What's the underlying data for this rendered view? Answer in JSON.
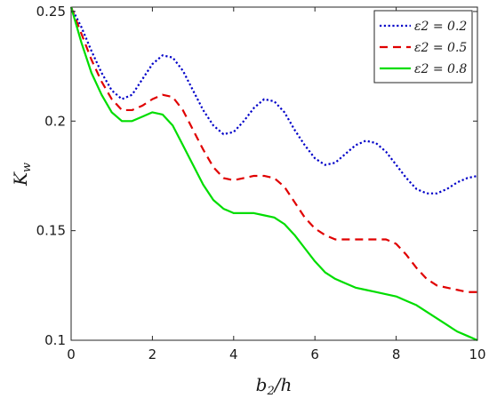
{
  "chart_data": {
    "type": "line",
    "xlabel": "b2/h",
    "ylabel": "Kw",
    "xlim": [
      0,
      10
    ],
    "ylim": [
      0.1,
      0.252
    ],
    "x_ticks": [
      "0",
      "2",
      "4",
      "6",
      "8",
      "10"
    ],
    "y_ticks": [
      "0.1",
      "0.15",
      "0.2",
      "0.25"
    ],
    "grid": false,
    "legend_position": "top-right",
    "x": [
      0,
      0.25,
      0.5,
      0.75,
      1.0,
      1.25,
      1.5,
      1.75,
      2.0,
      2.25,
      2.5,
      2.75,
      3.0,
      3.25,
      3.5,
      3.75,
      4.0,
      4.25,
      4.5,
      4.75,
      5.0,
      5.25,
      5.5,
      5.75,
      6.0,
      6.25,
      6.5,
      6.75,
      7.0,
      7.25,
      7.5,
      7.75,
      8.0,
      8.25,
      8.5,
      8.75,
      9.0,
      9.25,
      9.5,
      9.75,
      10.0
    ],
    "series": [
      {
        "name": "ε2 = 0.2",
        "color": "#0000c8",
        "style": "dotted",
        "values": [
          0.252,
          0.243,
          0.232,
          0.222,
          0.214,
          0.21,
          0.212,
          0.219,
          0.226,
          0.23,
          0.229,
          0.223,
          0.214,
          0.205,
          0.198,
          0.194,
          0.195,
          0.2,
          0.206,
          0.21,
          0.209,
          0.204,
          0.196,
          0.189,
          0.183,
          0.18,
          0.181,
          0.185,
          0.189,
          0.191,
          0.19,
          0.186,
          0.18,
          0.174,
          0.169,
          0.167,
          0.167,
          0.169,
          0.172,
          0.174,
          0.175
        ]
      },
      {
        "name": "ε2 = 0.5",
        "color": "#e00000",
        "style": "dashed",
        "values": [
          0.252,
          0.24,
          0.228,
          0.218,
          0.21,
          0.205,
          0.205,
          0.207,
          0.21,
          0.212,
          0.211,
          0.205,
          0.196,
          0.187,
          0.179,
          0.174,
          0.173,
          0.174,
          0.175,
          0.175,
          0.174,
          0.17,
          0.163,
          0.156,
          0.151,
          0.148,
          0.146,
          0.146,
          0.146,
          0.146,
          0.146,
          0.146,
          0.144,
          0.139,
          0.133,
          0.128,
          0.125,
          0.124,
          0.123,
          0.122,
          0.122
        ]
      },
      {
        "name": "ε2 = 0.8",
        "color": "#00dd00",
        "style": "solid",
        "values": [
          0.252,
          0.236,
          0.222,
          0.212,
          0.204,
          0.2,
          0.2,
          0.202,
          0.204,
          0.203,
          0.198,
          0.189,
          0.18,
          0.171,
          0.164,
          0.16,
          0.158,
          0.158,
          0.158,
          0.157,
          0.156,
          0.153,
          0.148,
          0.142,
          0.136,
          0.131,
          0.128,
          0.126,
          0.124,
          0.123,
          0.122,
          0.121,
          0.12,
          0.118,
          0.116,
          0.113,
          0.11,
          0.107,
          0.104,
          0.102,
          0.1
        ]
      }
    ]
  }
}
